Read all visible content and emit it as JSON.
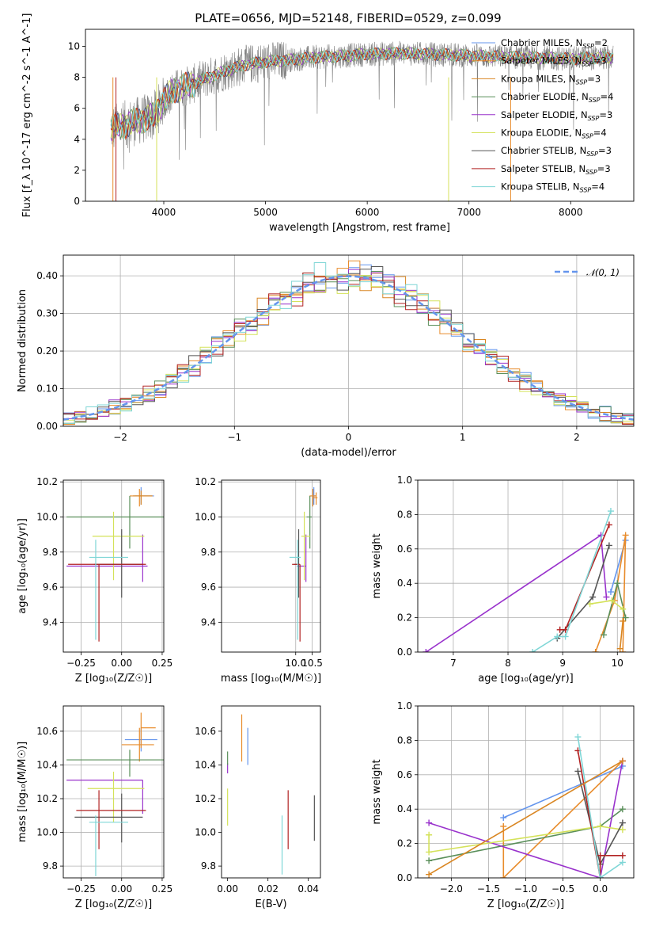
{
  "figure": {
    "title": "PLATE=0656, MJD=52148, FIBERID=0529, z=0.099"
  },
  "models": [
    {
      "name": "Chabrier MILES",
      "nssp": "2",
      "color": "#6495ed"
    },
    {
      "name": "Salpeter MILES",
      "nssp": "3",
      "color": "#e88c2c"
    },
    {
      "name": "Kroupa MILES",
      "nssp": "3",
      "color": "#d98622"
    },
    {
      "name": "Chabrier ELODIE",
      "nssp": "4",
      "color": "#5a8f5a"
    },
    {
      "name": "Salpeter ELODIE",
      "nssp": "3",
      "color": "#9932cc"
    },
    {
      "name": "Kroupa ELODIE",
      "nssp": "4",
      "color": "#d4e25a"
    },
    {
      "name": "Chabrier STELIB",
      "nssp": "3",
      "color": "#555555"
    },
    {
      "name": "Salpeter STELIB",
      "nssp": "3",
      "color": "#b22222"
    },
    {
      "name": "Kroupa STELIB",
      "nssp": "4",
      "color": "#7fd6d6"
    }
  ],
  "chart_data": [
    {
      "id": "spectrum",
      "type": "line",
      "xlabel": "wavelength [Angstrom, rest frame]",
      "ylabel": "Flux [f_λ 10^-17 erg cm^-2 s^-1 A^-1]",
      "xlim": [
        3230,
        8620
      ],
      "ylim": [
        0,
        11.1
      ],
      "xticks": [
        4000,
        5000,
        6000,
        7000,
        8000
      ],
      "yticks": [
        0,
        2,
        4,
        6,
        8,
        10
      ],
      "grid": false,
      "legend": "top-right",
      "data_range": [
        3480,
        8420
      ],
      "continuum": {
        "x": [
          3480,
          3600,
          3700,
          3800,
          3900,
          4000,
          4100,
          4200,
          4300,
          4400,
          4600,
          4800,
          5000,
          5200,
          5500,
          5800,
          6000,
          6300,
          6600,
          7000,
          7500,
          8000,
          8420
        ],
        "y": [
          4.7,
          4.9,
          5.1,
          5.3,
          5.5,
          6.5,
          7.2,
          7.4,
          7.6,
          7.9,
          8.4,
          8.8,
          9.0,
          9.1,
          9.3,
          9.4,
          9.5,
          9.55,
          9.5,
          9.4,
          9.3,
          9.2,
          9.3
        ]
      }
    },
    {
      "id": "residuals",
      "type": "line",
      "xlabel": "(data-model)/error",
      "ylabel": "Normed distribution",
      "xlim": [
        -2.5,
        2.5
      ],
      "ylim": [
        0,
        0.455
      ],
      "xticks": [
        -2,
        -1,
        0,
        1,
        2
      ],
      "yticks": [
        0.0,
        0.1,
        0.2,
        0.3,
        0.4
      ],
      "grid": true,
      "legend": "top-right",
      "reference_label": "𝒩(0, 1)",
      "reference": {
        "mu": 0,
        "sigma": 1
      },
      "bin_width": 0.1
    },
    {
      "id": "age_vs_Z",
      "type": "scatter",
      "xlabel": "Z [log₁₀(Z/Z☉)]",
      "ylabel": "age  [log₁₀(age/yr)]",
      "xlim": [
        -0.36,
        0.26
      ],
      "ylim": [
        9.23,
        10.21
      ],
      "xticks": [
        -0.25,
        0.0,
        0.25
      ],
      "yticks": [
        9.4,
        9.6,
        9.8,
        10.0,
        10.2
      ],
      "grid": true,
      "crosses": [
        {
          "model": 0,
          "x": 0.12,
          "y": 10.12,
          "xerr": [
            0.04,
            0.08
          ],
          "yerr": [
            0.05,
            0.05
          ]
        },
        {
          "model": 1,
          "x": 0.11,
          "y": 10.12,
          "xerr": [
            0.06,
            0.08
          ],
          "yerr": [
            0.06,
            0.04
          ]
        },
        {
          "model": 2,
          "x": 0.12,
          "y": 10.12,
          "xerr": [
            0.05,
            0.07
          ],
          "yerr": [
            0.05,
            0.03
          ]
        },
        {
          "model": 3,
          "x": 0.05,
          "y": 10.0,
          "xerr": [
            0.39,
            0.21
          ],
          "yerr": [
            0.18,
            0.12
          ]
        },
        {
          "model": 4,
          "x": 0.13,
          "y": 9.72,
          "xerr": [
            0.47,
            0.03
          ],
          "yerr": [
            0.09,
            0.18
          ]
        },
        {
          "model": 5,
          "x": -0.05,
          "y": 9.89,
          "xerr": [
            0.13,
            0.19
          ],
          "yerr": [
            0.25,
            0.14
          ]
        },
        {
          "model": 6,
          "x": 0.0,
          "y": 9.73,
          "xerr": [
            0.17,
            0.13
          ],
          "yerr": [
            0.19,
            0.2
          ]
        },
        {
          "model": 7,
          "x": -0.14,
          "y": 9.73,
          "xerr": [
            0.19,
            0.29
          ],
          "yerr": [
            0.44,
            0.0
          ]
        },
        {
          "model": 8,
          "x": -0.16,
          "y": 9.77,
          "xerr": [
            0.04,
            0.2
          ],
          "yerr": [
            0.47,
            0.1
          ]
        }
      ]
    },
    {
      "id": "age_vs_mass",
      "type": "scatter",
      "xlabel": "mass [log₁₀(M/M☉)]",
      "ylabel": "",
      "xlim": [
        7.75,
        10.75
      ],
      "ylim": [
        9.23,
        10.21
      ],
      "xticks": [
        10.0,
        10.5
      ],
      "yticks": [
        9.4,
        9.6,
        9.8,
        10.0,
        10.2
      ],
      "grid": true,
      "crosses": [
        {
          "model": 0,
          "x": 10.55,
          "y": 10.12,
          "xerr": [
            0.05,
            0.05
          ],
          "yerr": [
            0.05,
            0.05
          ]
        },
        {
          "model": 1,
          "x": 10.52,
          "y": 10.12,
          "xerr": [
            0.1,
            0.1
          ],
          "yerr": [
            0.06,
            0.04
          ]
        },
        {
          "model": 3,
          "x": 10.43,
          "y": 10.0,
          "xerr": [
            0.1,
            0.06
          ],
          "yerr": [
            0.18,
            0.12
          ]
        },
        {
          "model": 4,
          "x": 10.31,
          "y": 9.72,
          "xerr": [
            0.28,
            0.0
          ],
          "yerr": [
            0.09,
            0.18
          ]
        },
        {
          "model": 5,
          "x": 10.26,
          "y": 9.89,
          "xerr": [
            0.09,
            0.18
          ],
          "yerr": [
            0.25,
            0.14
          ]
        },
        {
          "model": 6,
          "x": 10.09,
          "y": 9.73,
          "xerr": [
            0.14,
            0.0
          ],
          "yerr": [
            0.19,
            0.2
          ]
        },
        {
          "model": 7,
          "x": 10.13,
          "y": 9.73,
          "xerr": [
            0.24,
            0.0
          ],
          "yerr": [
            0.44,
            0.0
          ]
        },
        {
          "model": 8,
          "x": 10.06,
          "y": 9.77,
          "xerr": [
            0.25,
            0.09
          ],
          "yerr": [
            0.47,
            0.1
          ]
        },
        {
          "model": 1,
          "x": 10.62,
          "y": 10.11,
          "xerr": [
            0.09,
            0.04
          ],
          "yerr": [
            0.04,
            0.03
          ]
        }
      ]
    },
    {
      "id": "massweight_vs_age",
      "type": "line",
      "xlabel": "age  [log₁₀(age/yr)]",
      "ylabel": "mass weight",
      "xlim": [
        6.35,
        10.3
      ],
      "ylim": [
        0,
        1.0
      ],
      "xticks": [
        7,
        8,
        9,
        10
      ],
      "yticks": [
        0.0,
        0.2,
        0.4,
        0.6,
        0.8,
        1.0
      ],
      "grid": true,
      "series": [
        {
          "model": 0,
          "x": [
            9.88,
            10.15
          ],
          "y": [
            0.35,
            0.65
          ]
        },
        {
          "model": 1,
          "x": [
            9.6,
            9.95,
            10.15,
            10.1
          ],
          "y": [
            0.0,
            0.3,
            0.68,
            0.0
          ]
        },
        {
          "model": 3,
          "x": [
            9.75,
            10.0,
            10.15
          ],
          "y": [
            0.1,
            0.4,
            0.2
          ]
        },
        {
          "model": 4,
          "x": [
            6.5,
            9.7,
            9.8
          ],
          "y": [
            0.0,
            0.68,
            0.32
          ]
        },
        {
          "model": 5,
          "x": [
            9.5,
            9.9,
            10.1
          ],
          "y": [
            0.28,
            0.3,
            0.25
          ]
        },
        {
          "model": 6,
          "x": [
            8.9,
            9.55,
            9.85
          ],
          "y": [
            0.08,
            0.32,
            0.62
          ]
        },
        {
          "model": 7,
          "x": [
            8.95,
            9.05,
            9.85
          ],
          "y": [
            0.13,
            0.13,
            0.74
          ]
        },
        {
          "model": 8,
          "x": [
            8.45,
            8.9,
            9.05,
            9.88
          ],
          "y": [
            0.0,
            0.09,
            0.09,
            0.82
          ]
        },
        {
          "model": 2,
          "x": [
            10.05,
            10.1
          ],
          "y": [
            0.02,
            0.18
          ]
        }
      ]
    },
    {
      "id": "mass_vs_Z",
      "type": "scatter",
      "xlabel": "Z [log₁₀(Z/Z☉)]",
      "ylabel": "mass [log₁₀(M/M☉)]",
      "xlim": [
        -0.36,
        0.26
      ],
      "ylim": [
        9.73,
        10.75
      ],
      "xticks": [
        -0.25,
        0.0,
        0.25
      ],
      "yticks": [
        9.8,
        10.0,
        10.2,
        10.4,
        10.6
      ],
      "grid": true,
      "crosses": [
        {
          "model": 0,
          "x": 0.12,
          "y": 10.55,
          "xerr": [
            0.1,
            0.1
          ],
          "yerr": [
            0.07,
            0.07
          ]
        },
        {
          "model": 1,
          "x": 0.11,
          "y": 10.52,
          "xerr": [
            0.11,
            0.09
          ],
          "yerr": [
            0.1,
            0.1
          ]
        },
        {
          "model": 3,
          "x": 0.05,
          "y": 10.43,
          "xerr": [
            0.39,
            0.21
          ],
          "yerr": [
            0.1,
            0.06
          ]
        },
        {
          "model": 4,
          "x": 0.13,
          "y": 10.31,
          "xerr": [
            0.47,
            0.0
          ],
          "yerr": [
            0.2,
            0.0
          ]
        },
        {
          "model": 5,
          "x": -0.05,
          "y": 10.26,
          "xerr": [
            0.16,
            0.19
          ],
          "yerr": [
            0.2,
            0.1
          ]
        },
        {
          "model": 6,
          "x": 0.0,
          "y": 10.09,
          "xerr": [
            0.29,
            0.13
          ],
          "yerr": [
            0.15,
            0.14
          ]
        },
        {
          "model": 7,
          "x": -0.14,
          "y": 10.13,
          "xerr": [
            0.14,
            0.29
          ],
          "yerr": [
            0.23,
            0.12
          ]
        },
        {
          "model": 8,
          "x": -0.16,
          "y": 10.06,
          "xerr": [
            0.04,
            0.2
          ],
          "yerr": [
            0.32,
            0.04
          ]
        },
        {
          "model": 1,
          "x": 0.12,
          "y": 10.62,
          "xerr": [
            0.0,
            0.09
          ],
          "yerr": [
            0.12,
            0.09
          ]
        }
      ]
    },
    {
      "id": "mass_vs_ebv",
      "type": "scatter",
      "xlabel": "E(B-V)",
      "ylabel": "",
      "xlim": [
        -0.003,
        0.046
      ],
      "ylim": [
        9.73,
        10.75
      ],
      "xticks": [
        0.0,
        0.02,
        0.04
      ],
      "yticks": [
        9.8,
        10.0,
        10.2,
        10.4,
        10.6
      ],
      "grid": false,
      "crosses": [
        {
          "model": 0,
          "x": 0.01,
          "y": 10.51,
          "xerr": [
            0,
            0
          ],
          "yerr": [
            0.11,
            0.11
          ]
        },
        {
          "model": 1,
          "x": 0.007,
          "y": 10.52,
          "xerr": [
            0,
            0
          ],
          "yerr": [
            0.1,
            0.18
          ]
        },
        {
          "model": 4,
          "x": 0.0,
          "y": 10.38,
          "xerr": [
            0,
            0
          ],
          "yerr": [
            0.03,
            0.03
          ]
        },
        {
          "model": 5,
          "x": 0.0,
          "y": 10.26,
          "xerr": [
            0,
            0
          ],
          "yerr": [
            0.22,
            0.0
          ]
        },
        {
          "model": 3,
          "x": 0.0,
          "y": 10.45,
          "xerr": [
            0,
            0
          ],
          "yerr": [
            0.05,
            0.03
          ]
        },
        {
          "model": 8,
          "x": 0.027,
          "y": 10.0,
          "xerr": [
            0,
            0
          ],
          "yerr": [
            0.25,
            0.1
          ]
        },
        {
          "model": 7,
          "x": 0.03,
          "y": 10.08,
          "xerr": [
            0,
            0
          ],
          "yerr": [
            0.18,
            0.17
          ]
        },
        {
          "model": 6,
          "x": 0.043,
          "y": 10.09,
          "xerr": [
            0,
            0
          ],
          "yerr": [
            0.14,
            0.13
          ]
        }
      ]
    },
    {
      "id": "massweight_vs_Z",
      "type": "line",
      "xlabel": "Z [log₁₀(Z/Z☉)]",
      "ylabel": "mass weight",
      "xlim": [
        -2.45,
        0.45
      ],
      "ylim": [
        0,
        1.0
      ],
      "xticks": [
        -2.0,
        -1.5,
        -1.0,
        -0.5,
        0.0
      ],
      "yticks": [
        0.0,
        0.2,
        0.4,
        0.6,
        0.8,
        1.0
      ],
      "grid": true,
      "series": [
        {
          "model": 0,
          "x": [
            -1.3,
            0.3
          ],
          "y": [
            0.35,
            0.65
          ]
        },
        {
          "model": 1,
          "x": [
            -1.3,
            -1.3,
            0.3
          ],
          "y": [
            0.3,
            0.0,
            0.68
          ]
        },
        {
          "model": 3,
          "x": [
            -2.3,
            0.0,
            0.3
          ],
          "y": [
            0.1,
            0.3,
            0.4
          ]
        },
        {
          "model": 4,
          "x": [
            -2.3,
            0.0,
            0.3
          ],
          "y": [
            0.32,
            0.0,
            0.68
          ]
        },
        {
          "model": 5,
          "x": [
            -2.3,
            -2.3,
            0.0,
            0.3
          ],
          "y": [
            0.25,
            0.15,
            0.3,
            0.28
          ]
        },
        {
          "model": 6,
          "x": [
            -0.3,
            0.0,
            0.3
          ],
          "y": [
            0.62,
            0.08,
            0.32
          ]
        },
        {
          "model": 7,
          "x": [
            -0.3,
            0.0,
            0.0,
            0.3
          ],
          "y": [
            0.74,
            0.0,
            0.13,
            0.13
          ]
        },
        {
          "model": 8,
          "x": [
            -0.3,
            0.0,
            0.3
          ],
          "y": [
            0.82,
            0.0,
            0.09
          ]
        },
        {
          "model": 2,
          "x": [
            -2.3,
            0.3
          ],
          "y": [
            0.02,
            0.68
          ]
        }
      ]
    }
  ]
}
